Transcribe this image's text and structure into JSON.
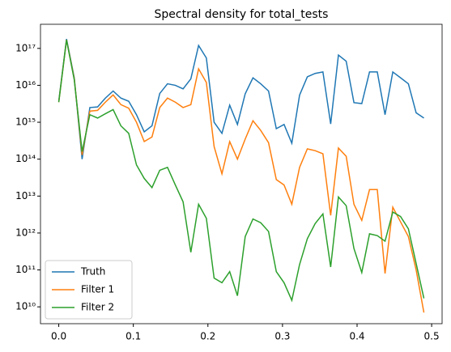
{
  "chart_data": {
    "type": "line",
    "title": "Spectral density for total_tests",
    "x": [
      0,
      0.0104,
      0.0208,
      0.0313,
      0.0417,
      0.0521,
      0.0625,
      0.0729,
      0.0833,
      0.0938,
      0.1042,
      0.1146,
      0.125,
      0.1354,
      0.1458,
      0.1563,
      0.1667,
      0.1771,
      0.1875,
      0.1979,
      0.2083,
      0.2188,
      0.2292,
      0.2396,
      0.25,
      0.2604,
      0.2708,
      0.2813,
      0.2917,
      0.3021,
      0.3125,
      0.3229,
      0.3333,
      0.3438,
      0.3542,
      0.3646,
      0.375,
      0.3854,
      0.3958,
      0.4063,
      0.4167,
      0.4271,
      0.4375,
      0.4479,
      0.4583,
      0.4688,
      0.4792,
      0.4896
    ],
    "series": [
      {
        "name": "Truth",
        "color": "#1f77b4",
        "values": [
          3700000000000000.0,
          1.8e+17,
          1.6e+16,
          100000000000000.0,
          2500000000000000.0,
          2600000000000000.0,
          4500000000000000.0,
          7000000000000000.0,
          4500000000000000.0,
          3700000000000000.0,
          1600000000000000.0,
          550000000000000.0,
          800000000000000.0,
          6000000000000000.0,
          1.1e+16,
          1e+16,
          8000000000000000.0,
          1.5e+16,
          1.2e+17,
          5.5e+16,
          1000000000000000.0,
          500000000000000.0,
          2900000000000000.0,
          870000000000000.0,
          5900000000000000.0,
          1.6e+16,
          1.1e+16,
          7000000000000000.0,
          670000000000000.0,
          870000000000000.0,
          270000000000000.0,
          5400000000000000.0,
          1.7e+16,
          2.1e+16,
          2.3e+16,
          900000000000000.0,
          6.6e+16,
          4.5e+16,
          3400000000000000.0,
          3200000000000000.0,
          2.3e+16,
          2.3e+16,
          1600000000000000.0,
          2.3e+16,
          1.6e+16,
          1.1e+16,
          1800000000000000.0,
          1300000000000000.0
        ]
      },
      {
        "name": "Filter 1",
        "color": "#ff7f0e",
        "values": [
          3500000000000000.0,
          1.7e+17,
          1.5e+16,
          130000000000000.0,
          2000000000000000.0,
          2100000000000000.0,
          3500000000000000.0,
          5500000000000000.0,
          3000000000000000.0,
          2400000000000000.0,
          1000000000000000.0,
          300000000000000.0,
          400000000000000.0,
          2500000000000000.0,
          4500000000000000.0,
          3500000000000000.0,
          2500000000000000.0,
          3000000000000000.0,
          2.8e+16,
          1.2e+16,
          220000000000000.0,
          40000000000000.0,
          300000000000000.0,
          100000000000000.0,
          350000000000000.0,
          1100000000000000.0,
          600000000000000.0,
          280000000000000.0,
          28000000000000.0,
          20000000000000.0,
          6000000000000.0,
          60000000000000.0,
          190000000000000.0,
          170000000000000.0,
          140000000000000.0,
          3000000000000.0,
          200000000000000.0,
          120000000000000.0,
          6000000000000.0,
          2200000000000.0,
          15000000000000.0,
          15000000000000.0,
          80000000000.0,
          5000000000000.0,
          2000000000000.0,
          800000000000.0,
          100000000000.0,
          7000000000.0
        ]
      },
      {
        "name": "Filter 2",
        "color": "#2ca02c",
        "values": [
          3500000000000000.0,
          1.7e+17,
          1.4e+16,
          160000000000000.0,
          1600000000000000.0,
          1300000000000000.0,
          1700000000000000.0,
          2200000000000000.0,
          800000000000000.0,
          500000000000000.0,
          70000000000000.0,
          30000000000000.0,
          17000000000000.0,
          50000000000000.0,
          60000000000000.0,
          20000000000000.0,
          7000000000000.0,
          300000000000.0,
          6000000000000.0,
          2500000000000.0,
          60000000000.0,
          45000000000.0,
          90000000000.0,
          20000000000.0,
          800000000000.0,
          2400000000000.0,
          1900000000000.0,
          1100000000000.0,
          90000000000.0,
          45000000000.0,
          15000000000.0,
          140000000000.0,
          700000000000.0,
          1800000000000.0,
          3300000000000.0,
          120000000000.0,
          9500000000000.0,
          5500000000000.0,
          380000000000.0,
          85000000000.0,
          950000000000.0,
          850000000000.0,
          600000000000.0,
          3700000000000.0,
          2800000000000.0,
          1300000000000.0,
          150000000000.0,
          17000000000.0
        ]
      }
    ],
    "xlim": [
      -0.0245,
      0.514
    ],
    "xticks": [
      {
        "value": 0,
        "label": "0.0"
      },
      {
        "value": 0.1,
        "label": "0.1"
      },
      {
        "value": 0.2,
        "label": "0.2"
      },
      {
        "value": 0.3,
        "label": "0.3"
      },
      {
        "value": 0.4,
        "label": "0.4"
      },
      {
        "value": 0.5,
        "label": "0.5"
      }
    ],
    "ylim": [
      3500000000.0,
      4.5e+17
    ],
    "log_y": true,
    "yticks": [
      {
        "value": 10000000000.0,
        "label": "10¹⁰"
      },
      {
        "value": 100000000000.0,
        "label": "10¹¹"
      },
      {
        "value": 1000000000000.0,
        "label": "10¹²"
      },
      {
        "value": 10000000000000.0,
        "label": "10¹³"
      },
      {
        "value": 100000000000000.0,
        "label": "10¹⁴"
      },
      {
        "value": 1000000000000000.0,
        "label": "10¹⁵"
      },
      {
        "value": 1e+16,
        "label": "10¹⁶"
      },
      {
        "value": 1e+17,
        "label": "10¹⁷"
      }
    ],
    "legend": "lower left"
  }
}
